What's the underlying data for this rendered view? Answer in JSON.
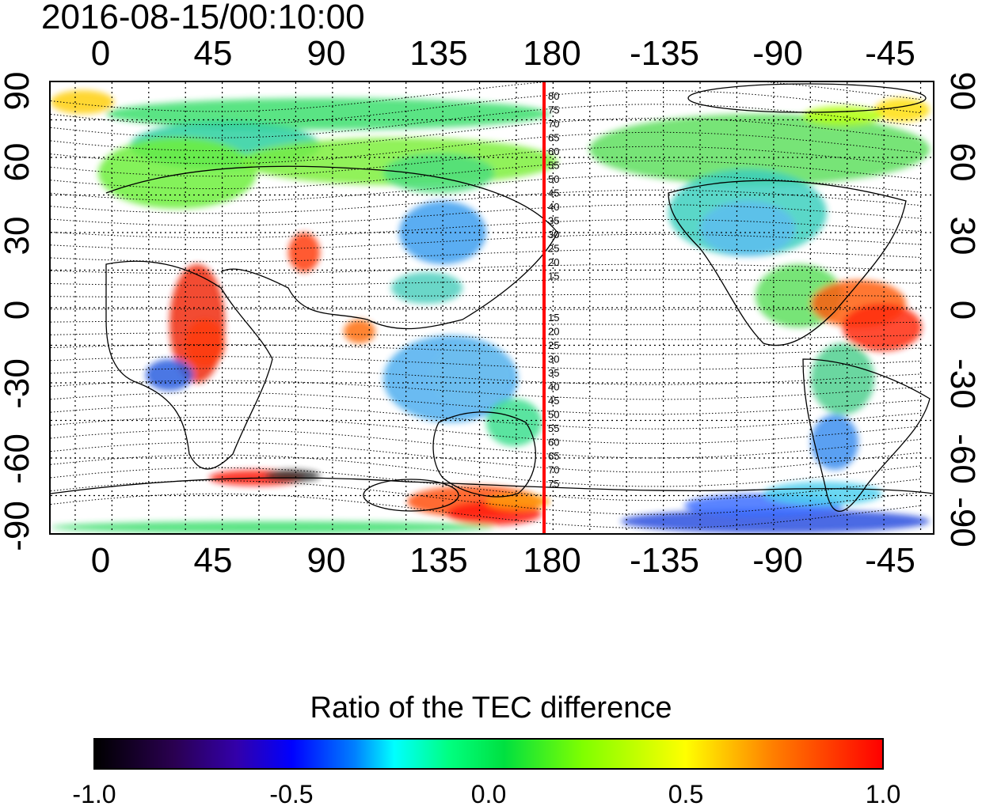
{
  "timestamp": "2016-08-15/00:10:00",
  "lon_labels": [
    "0",
    "45",
    "90",
    "135",
    "180",
    "-135",
    "-90",
    "-45"
  ],
  "lat_labels": [
    "90",
    "60",
    "30",
    "0",
    "-30",
    "-60",
    "-90"
  ],
  "contour_labels": [
    "80",
    "75",
    "70",
    "65",
    "60",
    "55",
    "50",
    "45",
    "40",
    "35",
    "30",
    "25",
    "20",
    "15",
    "15",
    "20",
    "25",
    "30",
    "35",
    "40",
    "45",
    "50",
    "55",
    "60",
    "65",
    "70",
    "75"
  ],
  "colorbar": {
    "title": "Ratio of the TEC difference",
    "ticks": [
      "-1.0",
      "-0.5",
      "0.0",
      "0.5",
      "1.0"
    ],
    "range": [
      -1.0,
      1.0
    ]
  },
  "map": {
    "projection": "equirectangular",
    "lon_range_deg": [
      -10,
      350
    ],
    "lat_range_deg": [
      -90,
      90
    ],
    "grid": true,
    "meridian_line": {
      "lon": 180,
      "color": "#ff0000"
    }
  }
}
